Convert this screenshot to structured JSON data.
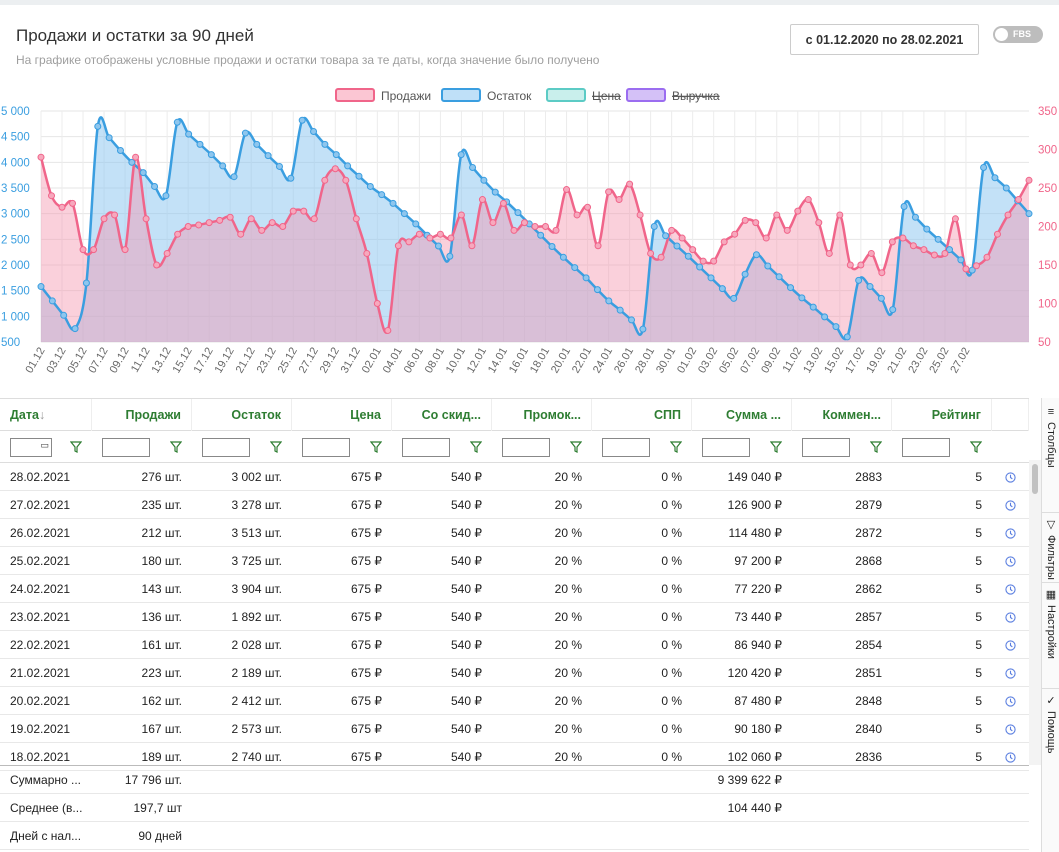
{
  "header": {
    "title": "Продажи и остатки за 90 дней",
    "subtitle": "На графике отображены условные продажи и остатки товара за те даты, когда значение было получено",
    "date_range": "с 01.12.2020 по 28.02.2021",
    "fbs_label": "FBS"
  },
  "legend": [
    {
      "name": "Продажи",
      "color": "#f0658a",
      "fill": "#fbc6d3",
      "struck": false
    },
    {
      "name": "Остаток",
      "color": "#3a9ee0",
      "fill": "#bfe0f8",
      "struck": false
    },
    {
      "name": "Цена",
      "color": "#5ccbc5",
      "fill": "#c9efec",
      "struck": true
    },
    {
      "name": "Выручка",
      "color": "#9b6df0",
      "fill": "#d4c1f7",
      "struck": true
    }
  ],
  "chart_data": {
    "type": "area",
    "left_axis": {
      "ticks": [
        "500",
        "1 000",
        "1 500",
        "2 000",
        "2 500",
        "3 000",
        "3 500",
        "4 000",
        "4 500",
        "5 000"
      ],
      "ylim": [
        500,
        5000
      ],
      "color": "#3a9ee0"
    },
    "right_axis": {
      "ticks": [
        "50",
        "100",
        "150",
        "200",
        "250",
        "300",
        "350"
      ],
      "ylim": [
        50,
        350
      ],
      "color": "#f0658a"
    },
    "x_labels": [
      "01.12",
      "03.12",
      "05.12",
      "07.12",
      "09.12",
      "11.12",
      "13.12",
      "15.12",
      "17.12",
      "19.12",
      "21.12",
      "23.12",
      "25.12",
      "27.12",
      "29.12",
      "31.12",
      "02.01",
      "04.01",
      "06.01",
      "08.01",
      "10.01",
      "12.01",
      "14.01",
      "16.01",
      "18.01",
      "20.01",
      "22.01",
      "24.01",
      "26.01",
      "28.01",
      "30.01",
      "01.02",
      "03.02",
      "05.02",
      "07.02",
      "09.02",
      "11.02",
      "13.02",
      "15.02",
      "17.02",
      "19.02",
      "21.02",
      "23.02",
      "25.02",
      "27.02"
    ],
    "series": [
      {
        "name": "Продажи",
        "axis": "right",
        "values": [
          290,
          240,
          225,
          230,
          170,
          170,
          210,
          215,
          170,
          290,
          210,
          150,
          165,
          190,
          200,
          202,
          205,
          208,
          212,
          190,
          210,
          195,
          205,
          200,
          220,
          220,
          210,
          260,
          275,
          260,
          210,
          165,
          100,
          65,
          175,
          180,
          190,
          185,
          190,
          185,
          215,
          175,
          235,
          205,
          230,
          195,
          205,
          200,
          200,
          195,
          248,
          215,
          225,
          175,
          245,
          235,
          255,
          215,
          165,
          160,
          195,
          185,
          170,
          155,
          155,
          180,
          190,
          208,
          205,
          185,
          215,
          195,
          220,
          235,
          205,
          165,
          215,
          150,
          150,
          165,
          140,
          180,
          185,
          175,
          170,
          163,
          165,
          210,
          145,
          149,
          160,
          190,
          215,
          235,
          260
        ]
      },
      {
        "name": "Остаток",
        "axis": "left",
        "values": [
          1580,
          1300,
          1020,
          760,
          1650,
          4700,
          4480,
          4230,
          4000,
          3800,
          3530,
          3350,
          4780,
          4550,
          4350,
          4150,
          3930,
          3720,
          4570,
          4350,
          4130,
          3920,
          3690,
          4820,
          4600,
          4350,
          4150,
          3930,
          3730,
          3530,
          3370,
          3200,
          3000,
          2800,
          2580,
          2370,
          2170,
          4150,
          3900,
          3650,
          3420,
          3230,
          3020,
          2800,
          2580,
          2360,
          2150,
          1950,
          1750,
          1520,
          1300,
          1120,
          930,
          750,
          2750,
          2570,
          2370,
          2170,
          1960,
          1750,
          1540,
          1350,
          1820,
          2200,
          1980,
          1770,
          1560,
          1360,
          1180,
          990,
          800,
          600,
          1700,
          1580,
          1350,
          1130,
          3140,
          2930,
          2700,
          2500,
          2300,
          2100,
          1900,
          3900,
          3700,
          3500,
          3250,
          3000
        ]
      }
    ],
    "grid": true
  },
  "table": {
    "columns": [
      {
        "label": "Дата",
        "sort_icon": "arrow-down"
      },
      {
        "label": "Продажи"
      },
      {
        "label": "Остаток"
      },
      {
        "label": "Цена"
      },
      {
        "label": "Со скид..."
      },
      {
        "label": "Промок..."
      },
      {
        "label": "СПП"
      },
      {
        "label": "Сумма ..."
      },
      {
        "label": "Коммен..."
      },
      {
        "label": "Рейтинг"
      }
    ],
    "rows": [
      [
        "28.02.2021",
        "276 шт.",
        "3 002 шт.",
        "675 ₽",
        "540 ₽",
        "20 %",
        "0 %",
        "149 040 ₽",
        "2883",
        "5"
      ],
      [
        "27.02.2021",
        "235 шт.",
        "3 278 шт.",
        "675 ₽",
        "540 ₽",
        "20 %",
        "0 %",
        "126 900 ₽",
        "2879",
        "5"
      ],
      [
        "26.02.2021",
        "212 шт.",
        "3 513 шт.",
        "675 ₽",
        "540 ₽",
        "20 %",
        "0 %",
        "114 480 ₽",
        "2872",
        "5"
      ],
      [
        "25.02.2021",
        "180 шт.",
        "3 725 шт.",
        "675 ₽",
        "540 ₽",
        "20 %",
        "0 %",
        "97 200 ₽",
        "2868",
        "5"
      ],
      [
        "24.02.2021",
        "143 шт.",
        "3 904 шт.",
        "675 ₽",
        "540 ₽",
        "20 %",
        "0 %",
        "77 220 ₽",
        "2862",
        "5"
      ],
      [
        "23.02.2021",
        "136 шт.",
        "1 892 шт.",
        "675 ₽",
        "540 ₽",
        "20 %",
        "0 %",
        "73 440 ₽",
        "2857",
        "5"
      ],
      [
        "22.02.2021",
        "161 шт.",
        "2 028 шт.",
        "675 ₽",
        "540 ₽",
        "20 %",
        "0 %",
        "86 940 ₽",
        "2854",
        "5"
      ],
      [
        "21.02.2021",
        "223 шт.",
        "2 189 шт.",
        "675 ₽",
        "540 ₽",
        "20 %",
        "0 %",
        "120 420 ₽",
        "2851",
        "5"
      ],
      [
        "20.02.2021",
        "162 шт.",
        "2 412 шт.",
        "675 ₽",
        "540 ₽",
        "20 %",
        "0 %",
        "87 480 ₽",
        "2848",
        "5"
      ],
      [
        "19.02.2021",
        "167 шт.",
        "2 573 шт.",
        "675 ₽",
        "540 ₽",
        "20 %",
        "0 %",
        "90 180 ₽",
        "2840",
        "5"
      ],
      [
        "18.02.2021",
        "189 шт.",
        "2 740 шт.",
        "675 ₽",
        "540 ₽",
        "20 %",
        "0 %",
        "102 060 ₽",
        "2836",
        "5"
      ]
    ],
    "footer": [
      {
        "label": "Суммарно ...",
        "sales": "17 796 шт.",
        "sum": "9 399 622 ₽"
      },
      {
        "label": "Среднее (в...",
        "sales": "197,7 шт",
        "sum": "104 440 ₽"
      },
      {
        "label": "Дней с нал...",
        "sales": "90 дней",
        "sum": ""
      }
    ]
  },
  "side_panel": [
    {
      "label": "Столбцы",
      "icon": "columns-icon"
    },
    {
      "label": "Фильтры",
      "icon": "filter-icon"
    },
    {
      "label": "Настройки",
      "icon": "settings-icon"
    },
    {
      "label": "Помощь",
      "icon": "help-icon"
    }
  ]
}
